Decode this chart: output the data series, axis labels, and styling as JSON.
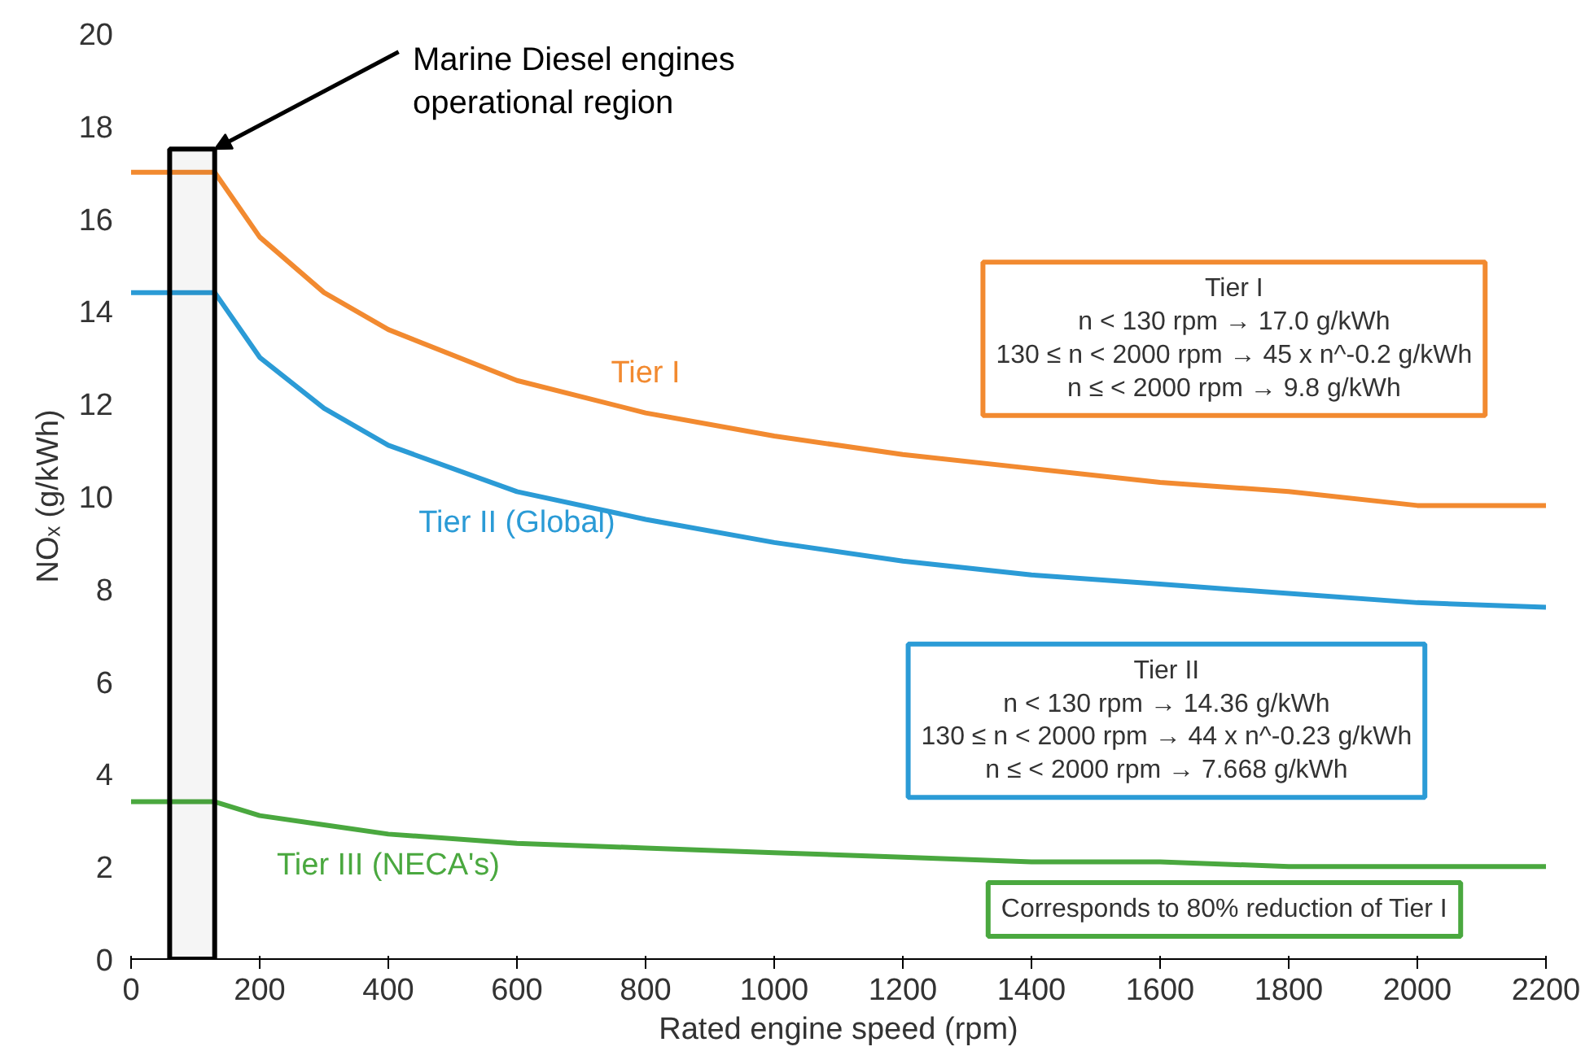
{
  "chart_data": {
    "type": "line",
    "xlabel": "Rated engine speed (rpm)",
    "ylabel": "NOₓ (g/kWh)",
    "x": [
      0,
      130,
      200,
      300,
      400,
      600,
      800,
      1000,
      1200,
      1400,
      1600,
      1800,
      2000,
      2200
    ],
    "series": [
      {
        "name": "Tier I",
        "color": "#f28a30",
        "values": [
          17,
          17,
          15.6,
          14.4,
          13.6,
          12.5,
          11.8,
          11.3,
          10.9,
          10.6,
          10.3,
          10.1,
          9.8,
          9.8
        ]
      },
      {
        "name": "Tier II (Global)",
        "color": "#2b9bd6",
        "values": [
          14.4,
          14.4,
          13.0,
          11.9,
          11.1,
          10.1,
          9.5,
          9.0,
          8.6,
          8.3,
          8.1,
          7.9,
          7.7,
          7.6
        ]
      },
      {
        "name": "Tier III (NECA's)",
        "color": "#4aa83f",
        "values": [
          3.4,
          3.4,
          3.1,
          2.9,
          2.7,
          2.5,
          2.4,
          2.3,
          2.2,
          2.1,
          2.1,
          2.0,
          2.0,
          2.0
        ]
      }
    ],
    "annotations": [
      "Tier I\nn < 130 rpm → 17.0 g/kWh\n130 ≤ n < 2000 rpm → 45 x n^-0.2 g/kWh\nn ≤ < 2000 rpm → 9.8 g/kWh",
      "Tier II\nn < 130 rpm → 14.36 g/kWh\n130 ≤ n < 2000 rpm → 44 x n^-0.23 g/kWh\nn ≤ < 2000 rpm → 7.668 g/kWh",
      "Corresponds to 80% reduction of Tier I"
    ],
    "bands": [
      {
        "axis": "x",
        "from": 60,
        "to": 130,
        "color": "#000000",
        "label": "Marine Diesel engines\noperational region"
      }
    ],
    "xlim": [
      0,
      2200
    ],
    "ylim": [
      0,
      20
    ],
    "xticks": [
      0,
      200,
      400,
      600,
      800,
      1000,
      1200,
      1400,
      1600,
      1800,
      2000,
      2200
    ],
    "yticks": [
      0,
      2,
      4,
      6,
      8,
      10,
      12,
      14,
      16,
      18,
      20
    ],
    "grid": false,
    "legend": false,
    "marker": "none",
    "line_style": "solid"
  }
}
